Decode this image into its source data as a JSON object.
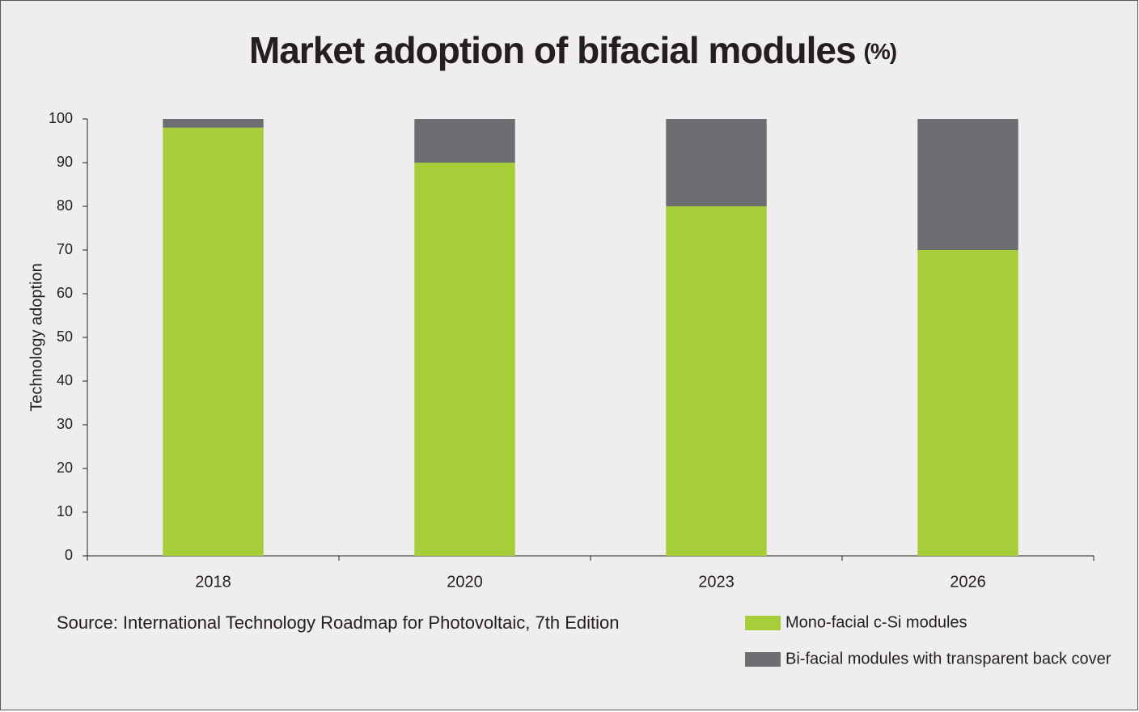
{
  "chart_data": {
    "type": "stacked_bar",
    "title": "Market adoption of bifacial modules",
    "title_suffix": "(%)",
    "y_label": "Technology adoption",
    "source": "Source: International Technology Roadmap for Photovoltaic, 7th Edition",
    "categories": [
      "2018",
      "2020",
      "2023",
      "2026"
    ],
    "series": [
      {
        "name": "Mono-facial c-Si modules",
        "color": "#a6ce39",
        "values": [
          98,
          90,
          80,
          70
        ]
      },
      {
        "name": "Bi-facial modules with transparent back cover",
        "color": "#6d6e71",
        "values": [
          2,
          10,
          20,
          30
        ]
      }
    ],
    "ylim": [
      0,
      100
    ],
    "yticks": [
      0,
      10,
      20,
      30,
      40,
      50,
      60,
      70,
      80,
      90,
      100
    ],
    "grid": false
  }
}
